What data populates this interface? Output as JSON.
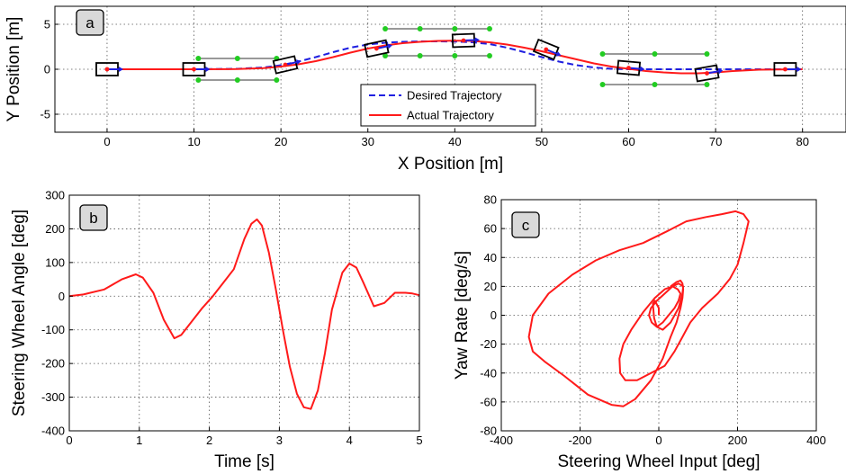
{
  "colors": {
    "desired": "#1f1fe0",
    "actual": "#ff1a1a",
    "cone": "#22cc22",
    "car_outline": "#000000",
    "grid": "#555555",
    "panel_label_bg": "#d9d9d9"
  },
  "chart_data": [
    {
      "id": "a",
      "type": "line",
      "panel_label": "a",
      "xlabel": "X Position [m]",
      "ylabel": "Y Position [m]",
      "xlim": [
        -6,
        85
      ],
      "ylim": [
        -7,
        7
      ],
      "xticks": [
        0,
        10,
        20,
        30,
        40,
        50,
        60,
        70,
        80
      ],
      "yticks": [
        -5,
        0,
        5
      ],
      "grid": true,
      "legend_position": "bottom-center",
      "series": [
        {
          "name": "Desired Trajectory",
          "style": "dashed",
          "x": [
            0,
            10,
            15,
            18,
            20,
            22,
            24,
            26,
            28,
            30,
            32,
            34,
            36,
            38,
            40,
            42,
            44,
            46,
            48,
            50,
            52,
            54,
            56,
            58,
            60,
            65,
            70,
            80
          ],
          "y": [
            0,
            0,
            0.05,
            0.2,
            0.45,
            0.85,
            1.35,
            1.9,
            2.4,
            2.75,
            2.95,
            3.05,
            3.1,
            3.1,
            3.08,
            3.0,
            2.8,
            2.4,
            1.9,
            1.35,
            0.85,
            0.45,
            0.2,
            0.05,
            0,
            0,
            0,
            0
          ]
        },
        {
          "name": "Actual Trajectory",
          "style": "solid",
          "x": [
            0,
            10,
            15,
            18,
            20,
            22,
            24,
            26,
            28,
            30,
            32,
            34,
            36,
            38,
            40,
            42,
            44,
            46,
            48,
            50,
            52,
            54,
            56,
            58,
            60,
            62,
            64,
            66,
            68,
            70,
            72,
            75,
            80
          ],
          "y": [
            0,
            0,
            0.02,
            0.12,
            0.3,
            0.55,
            0.9,
            1.35,
            1.85,
            2.3,
            2.65,
            2.9,
            3.05,
            3.15,
            3.18,
            3.15,
            3.0,
            2.75,
            2.4,
            2.0,
            1.55,
            1.1,
            0.65,
            0.3,
            0.05,
            -0.2,
            -0.35,
            -0.45,
            -0.45,
            -0.35,
            -0.2,
            -0.05,
            0
          ]
        }
      ],
      "cars": [
        {
          "x": 0,
          "y": 0,
          "heading_deg": 0
        },
        {
          "x": 10,
          "y": 0,
          "heading_deg": 0
        },
        {
          "x": 20.5,
          "y": 0.5,
          "heading_deg": 13
        },
        {
          "x": 31,
          "y": 2.3,
          "heading_deg": 12
        },
        {
          "x": 41,
          "y": 3.2,
          "heading_deg": 2
        },
        {
          "x": 50.5,
          "y": 2.2,
          "heading_deg": -22
        },
        {
          "x": 60,
          "y": 0.15,
          "heading_deg": -5
        },
        {
          "x": 69,
          "y": -0.45,
          "heading_deg": 10
        },
        {
          "x": 78,
          "y": 0,
          "heading_deg": 0
        }
      ],
      "cones": [
        {
          "x": 10.5,
          "y": 1.2
        },
        {
          "x": 15,
          "y": 1.2
        },
        {
          "x": 19.5,
          "y": 1.2
        },
        {
          "x": 10.5,
          "y": -1.2
        },
        {
          "x": 15,
          "y": -1.2
        },
        {
          "x": 19.5,
          "y": -1.2
        },
        {
          "x": 32,
          "y": 4.5
        },
        {
          "x": 36,
          "y": 4.5
        },
        {
          "x": 40,
          "y": 4.5
        },
        {
          "x": 44,
          "y": 4.5
        },
        {
          "x": 32,
          "y": 1.5
        },
        {
          "x": 36,
          "y": 1.5
        },
        {
          "x": 40,
          "y": 1.5
        },
        {
          "x": 44,
          "y": 1.5
        },
        {
          "x": 57,
          "y": 1.7
        },
        {
          "x": 63,
          "y": 1.7
        },
        {
          "x": 69,
          "y": 1.7
        },
        {
          "x": 57,
          "y": -1.7
        },
        {
          "x": 63,
          "y": -1.7
        },
        {
          "x": 69,
          "y": -1.7
        }
      ],
      "cone_lines": [
        {
          "x1": 10.5,
          "x2": 19.5,
          "y": 1.2
        },
        {
          "x1": 10.5,
          "x2": 19.5,
          "y": -1.2
        },
        {
          "x1": 32,
          "x2": 44,
          "y": 4.5
        },
        {
          "x1": 32,
          "x2": 44,
          "y": 1.5
        },
        {
          "x1": 57,
          "x2": 69,
          "y": 1.7
        },
        {
          "x1": 57,
          "x2": 69,
          "y": -1.7
        }
      ]
    },
    {
      "id": "b",
      "type": "line",
      "panel_label": "b",
      "xlabel": "Time [s]",
      "ylabel": "Steering Wheel Angle [deg]",
      "xlim": [
        0,
        5
      ],
      "ylim": [
        -400,
        300
      ],
      "xticks": [
        0,
        1,
        2,
        3,
        4,
        5
      ],
      "yticks": [
        -400,
        -300,
        -200,
        -100,
        0,
        100,
        200,
        300
      ],
      "grid": true,
      "series": [
        {
          "name": "",
          "x": [
            0,
            0.2,
            0.5,
            0.75,
            0.95,
            1.05,
            1.2,
            1.35,
            1.5,
            1.6,
            1.75,
            1.9,
            2.05,
            2.2,
            2.35,
            2.5,
            2.6,
            2.68,
            2.75,
            2.85,
            2.95,
            3.05,
            3.15,
            3.25,
            3.35,
            3.45,
            3.55,
            3.65,
            3.75,
            3.9,
            4.0,
            4.1,
            4.2,
            4.35,
            4.5,
            4.65,
            4.8,
            4.9,
            5.0
          ],
          "y": [
            0,
            5,
            20,
            50,
            65,
            55,
            10,
            -70,
            -125,
            -115,
            -75,
            -35,
            0,
            40,
            80,
            170,
            215,
            228,
            210,
            130,
            20,
            -100,
            -210,
            -290,
            -330,
            -335,
            -280,
            -170,
            -40,
            70,
            97,
            85,
            40,
            -30,
            -20,
            10,
            10,
            8,
            3
          ]
        }
      ]
    },
    {
      "id": "c",
      "type": "line",
      "panel_label": "c",
      "xlabel": "Steering Wheel Input [deg]",
      "ylabel": "Yaw Rate [deg/s]",
      "xlim": [
        -400,
        400
      ],
      "ylim": [
        -80,
        80
      ],
      "xticks": [
        -400,
        -200,
        0,
        200,
        400
      ],
      "yticks": [
        -80,
        -60,
        -40,
        -20,
        0,
        20,
        40,
        60,
        80
      ],
      "grid": true,
      "series": [
        {
          "name": "",
          "x": [
            0,
            0,
            -10,
            -15,
            -12,
            -5,
            10,
            30,
            50,
            60,
            62,
            50,
            35,
            15,
            -5,
            -20,
            -25,
            -18,
            -5,
            10,
            25,
            40,
            50,
            55,
            48,
            35,
            15,
            -10,
            -40,
            -70,
            -90,
            -100,
            -98,
            -85,
            -55,
            -20,
            15,
            40,
            60,
            80,
            110,
            150,
            180,
            200,
            215,
            228,
            215,
            195,
            160,
            120,
            70,
            20,
            -40,
            -100,
            -160,
            -220,
            -280,
            -320,
            -330,
            -320,
            -290,
            -240,
            -180,
            -120,
            -90,
            -60,
            -20,
            10,
            30,
            45,
            55,
            60,
            62,
            60,
            55,
            45,
            30
          ],
          "y": [
            0,
            5,
            10,
            8,
            -2,
            -8,
            -10,
            -5,
            5,
            15,
            20,
            22,
            20,
            15,
            10,
            5,
            0,
            -5,
            -8,
            -5,
            0,
            5,
            10,
            15,
            18,
            20,
            18,
            12,
            2,
            -10,
            -20,
            -30,
            -40,
            -45,
            -45,
            -40,
            -35,
            -25,
            -15,
            -5,
            5,
            15,
            25,
            35,
            50,
            65,
            70,
            72,
            70,
            68,
            65,
            58,
            50,
            45,
            38,
            28,
            15,
            0,
            -15,
            -25,
            -32,
            -42,
            -55,
            -62,
            -63,
            -58,
            -45,
            -30,
            -15,
            -5,
            5,
            12,
            18,
            22,
            24,
            23,
            20
          ]
        }
      ]
    }
  ]
}
